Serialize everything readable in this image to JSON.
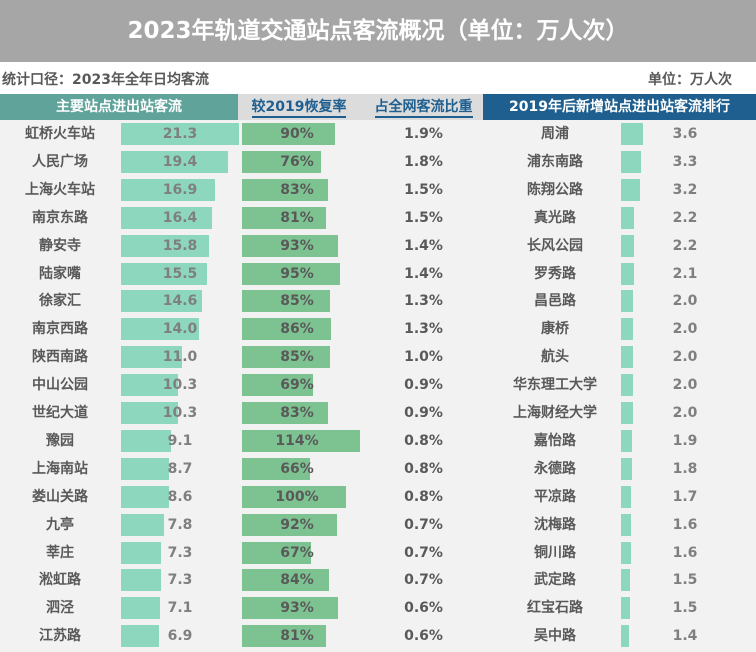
{
  "title": "2023年轨道交通站点客流概况（单位：万人次）",
  "subtitle": "统计口径：2023年全年日均客流",
  "unit": "单位：万人次",
  "headers": {
    "main": "主要站点进出站客流",
    "recovery": "较2019恢复率",
    "share": "占全网客流比重",
    "new": "2019年后新增站点进出站客流排行"
  },
  "colors": {
    "main_bar": "#8dd7bf",
    "recovery_bar": "#7dc391",
    "header_main": "#5fa39b",
    "header_new": "#1f5f8f"
  },
  "chart_data": {
    "type": "table",
    "main_stations": [
      {
        "name": "虹桥火车站",
        "flow": 21.3,
        "recovery": "90%",
        "share": "1.9%"
      },
      {
        "name": "人民广场",
        "flow": 19.4,
        "recovery": "76%",
        "share": "1.8%"
      },
      {
        "name": "上海火车站",
        "flow": 16.9,
        "recovery": "83%",
        "share": "1.5%"
      },
      {
        "name": "南京东路",
        "flow": 16.4,
        "recovery": "81%",
        "share": "1.5%"
      },
      {
        "name": "静安寺",
        "flow": 15.8,
        "recovery": "93%",
        "share": "1.4%"
      },
      {
        "name": "陆家嘴",
        "flow": 15.5,
        "recovery": "95%",
        "share": "1.4%"
      },
      {
        "name": "徐家汇",
        "flow": 14.6,
        "recovery": "85%",
        "share": "1.3%"
      },
      {
        "name": "南京西路",
        "flow": 14.0,
        "recovery": "86%",
        "share": "1.3%"
      },
      {
        "name": "陕西南路",
        "flow": 11.0,
        "recovery": "85%",
        "share": "1.0%"
      },
      {
        "name": "中山公园",
        "flow": 10.3,
        "recovery": "69%",
        "share": "0.9%"
      },
      {
        "name": "世纪大道",
        "flow": 10.3,
        "recovery": "83%",
        "share": "0.9%"
      },
      {
        "name": "豫园",
        "flow": 9.1,
        "recovery": "114%",
        "share": "0.8%"
      },
      {
        "name": "上海南站",
        "flow": 8.7,
        "recovery": "66%",
        "share": "0.8%"
      },
      {
        "name": "娄山关路",
        "flow": 8.6,
        "recovery": "100%",
        "share": "0.8%"
      },
      {
        "name": "九亭",
        "flow": 7.8,
        "recovery": "92%",
        "share": "0.7%"
      },
      {
        "name": "莘庄",
        "flow": 7.3,
        "recovery": "67%",
        "share": "0.7%"
      },
      {
        "name": "淞虹路",
        "flow": 7.3,
        "recovery": "84%",
        "share": "0.7%"
      },
      {
        "name": "泗泾",
        "flow": 7.1,
        "recovery": "93%",
        "share": "0.6%"
      },
      {
        "name": "江苏路",
        "flow": 6.9,
        "recovery": "81%",
        "share": "0.6%"
      }
    ],
    "new_stations": [
      {
        "name": "周浦",
        "flow": 3.6
      },
      {
        "name": "浦东南路",
        "flow": 3.3
      },
      {
        "name": "陈翔公路",
        "flow": 3.2
      },
      {
        "name": "真光路",
        "flow": 2.2
      },
      {
        "name": "长风公园",
        "flow": 2.2
      },
      {
        "name": "罗秀路",
        "flow": 2.1
      },
      {
        "name": "昌邑路",
        "flow": 2.0
      },
      {
        "name": "康桥",
        "flow": 2.0
      },
      {
        "name": "航头",
        "flow": 2.0
      },
      {
        "name": "华东理工大学",
        "flow": 2.0
      },
      {
        "name": "上海财经大学",
        "flow": 2.0
      },
      {
        "name": "嘉怡路",
        "flow": 1.9
      },
      {
        "name": "永德路",
        "flow": 1.8
      },
      {
        "name": "平凉路",
        "flow": 1.7
      },
      {
        "name": "沈梅路",
        "flow": 1.6
      },
      {
        "name": "铜川路",
        "flow": 1.6
      },
      {
        "name": "武定路",
        "flow": 1.5
      },
      {
        "name": "红宝石路",
        "flow": 1.5
      },
      {
        "name": "吴中路",
        "flow": 1.4
      }
    ]
  }
}
